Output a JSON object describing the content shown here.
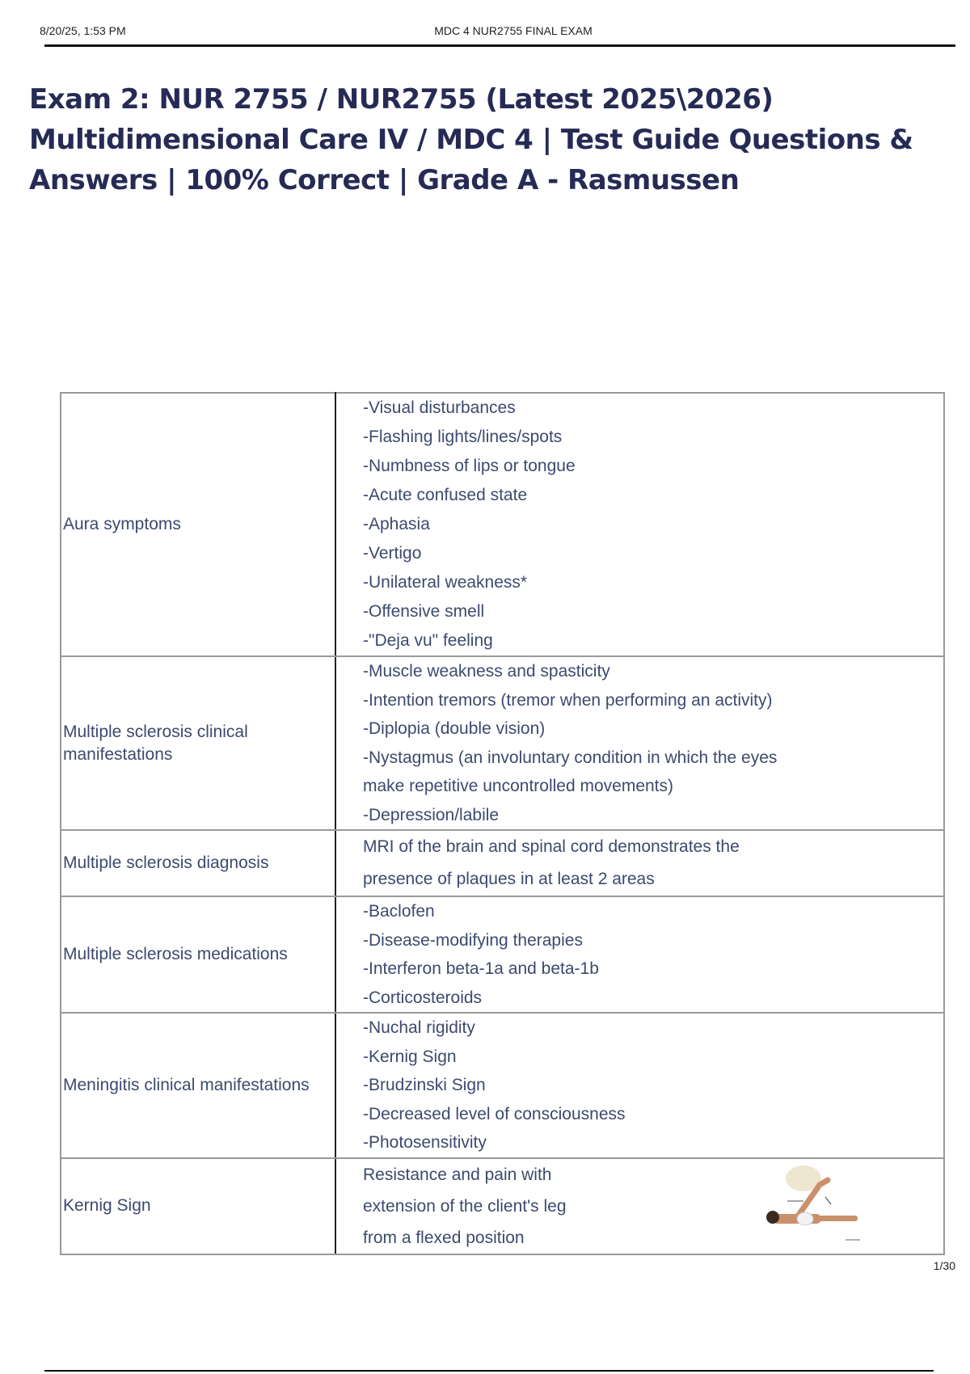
{
  "header": {
    "date_time": "8/20/25, 1:53 PM",
    "doc_title": "MDC 4 NUR2755 FINAL EXAM"
  },
  "title_lines": [
    "Exam 2: NUR 2755 / NUR2755 (Latest 2025\\2026)",
    "Multidimensional Care IV / MDC 4 | Test Guide Questions &",
    "Answers | 100% Correct | Grade A - Rasmussen"
  ],
  "rows": [
    {
      "term": "Aura symptoms",
      "lines": [
        "-Visual disturbances",
        "-Flashing lights/lines/spots",
        "-Numbness of lips or tongue",
        "-Acute confused state",
        "-Aphasia",
        "-Vertigo",
        "-Unilateral weakness*",
        "-Offensive smell",
        "-\"Deja vu\" feeling"
      ]
    },
    {
      "term": "Multiple sclerosis clinical manifestations",
      "lines": [
        "-Muscle weakness and spasticity",
        "-Intention tremors (tremor when performing an activity)",
        "-Diplopia (double vision)",
        "-Nystagmus (an involuntary condition in which the eyes",
        "make repetitive uncontrolled movements)",
        "-Depression/labile"
      ]
    },
    {
      "term": "Multiple sclerosis diagnosis",
      "lines": [
        "MRI of the brain and spinal cord demonstrates the",
        "presence of plaques in at least 2 areas"
      ]
    },
    {
      "term": "Multiple sclerosis medications",
      "lines": [
        "-Baclofen",
        "-Disease-modifying therapies",
        "-Interferon beta-1a and beta-1b",
        "-Corticosteroids"
      ]
    },
    {
      "term": "Meningitis clinical manifestations",
      "lines": [
        "-Nuchal rigidity",
        "-Kernig Sign",
        "-Brudzinski Sign",
        "-Decreased level of consciousness",
        "-Photosensitivity"
      ]
    },
    {
      "term": "Kernig Sign",
      "lines": [
        "Resistance and pain with",
        "extension of the client's leg",
        "from a flexed position"
      ]
    }
  ],
  "page_number": "1/30",
  "colors": {
    "title": "#262b55",
    "table_text": "#3c4a6e"
  }
}
